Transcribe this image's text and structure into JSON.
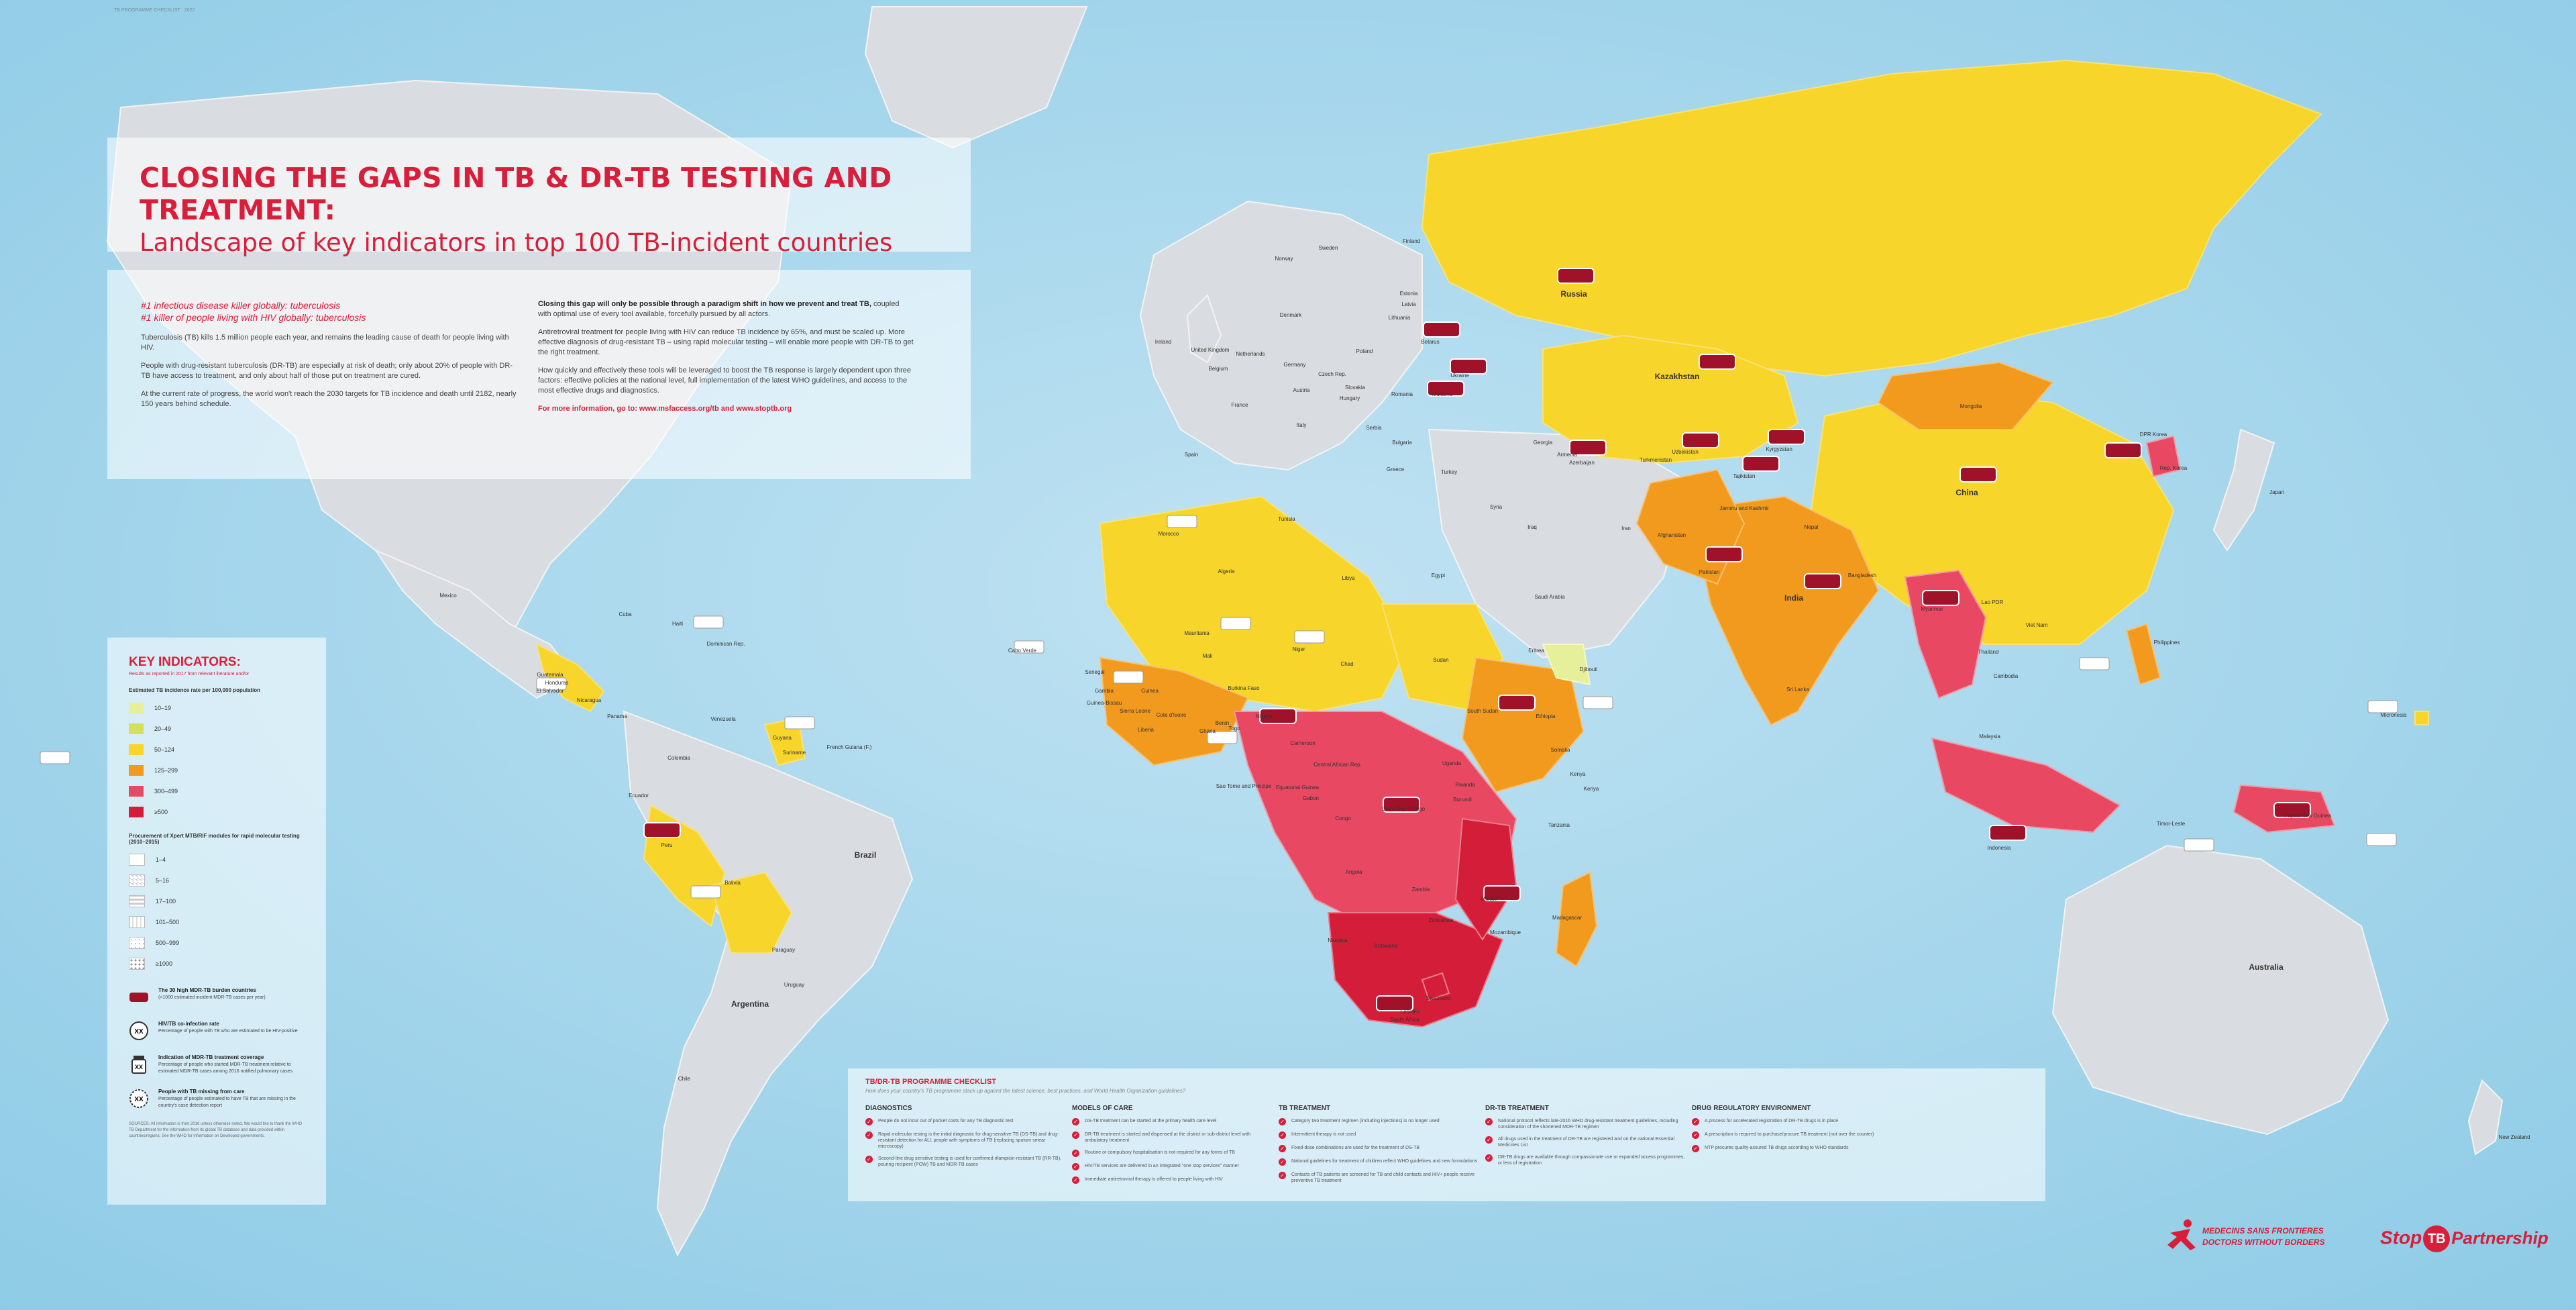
{
  "corner_note": "TB PROGRAMME CHECKLIST  ·  2022",
  "title": {
    "line1": "CLOSING THE GAPS IN TB & DR-TB TESTING AND TREATMENT:",
    "line2": "Landscape of key indicators in top 100 TB-incident countries"
  },
  "intro": {
    "kill1": "#1 infectious disease killer globally: tuberculosis",
    "kill2": "#1 killer of people living with HIV globally: tuberculosis",
    "p1": "Tuberculosis (TB) kills 1.5 million people each year, and remains the leading cause of death for people living with HIV.",
    "p2": "People with drug-resistant tuberculosis (DR-TB) are especially at risk of death; only about 20% of people with DR-TB have access to treatment, and only about half of those put on treatment are cured.",
    "p3": "At the current rate of progress, the world won't reach the 2030 targets for TB incidence and death until 2182, nearly 150 years behind schedule.",
    "right_strong": "Closing this gap will only be possible through a paradigm shift in how we prevent and treat TB,",
    "right_rest": " coupled with optimal use of every tool available, forcefully pursued by all actors.",
    "p4": "Antiretroviral treatment for people living with HIV can reduce TB incidence by 65%, and must be scaled up. More effective diagnosis of drug-resistant TB – using rapid molecular testing – will enable more people with DR-TB to get the right treatment.",
    "p5": "How quickly and effectively these tools will be leveraged to boost the TB response is largely dependent upon three factors: effective policies at the national level, full implementation of the latest WHO guidelines, and access to the most effective drugs and diagnostics.",
    "link": "For more information, go to: www.msfaccess.org/tb and www.stoptb.org"
  },
  "legend": {
    "title": "KEY INDICATORS:",
    "subtitle": "Results as reported in 2017 from relevant literature and/or",
    "incidence_head": "Estimated TB incidence rate per 100,000 population",
    "incidence_bins": [
      {
        "label": "10–19",
        "color": "#e6ef9a"
      },
      {
        "label": "20–49",
        "color": "#d3e15a"
      },
      {
        "label": "50–124",
        "color": "#f7d52a"
      },
      {
        "label": "125–299",
        "color": "#f29a1e"
      },
      {
        "label": "300–499",
        "color": "#e84862"
      },
      {
        "label": "≥500",
        "color": "#d41d38"
      }
    ],
    "procurement_head": "Procurement of Xpert MTB/RIF modules for rapid molecular testing (2010–2015)",
    "procurement_bins": [
      "1–4",
      "5–16",
      "17–100",
      "101–500",
      "500–999",
      "≥1000"
    ],
    "dr_title": "The 30 high MDR-TB burden countries",
    "dr_text": "(>1000 estimated incident MDR-TB cases per year)",
    "hiv_title": "HIV/TB co-infection rate",
    "hiv_text": "Percentage of people with TB who are estimated to be HIV-positive",
    "mdr_title": "Indication of MDR-TB treatment coverage",
    "mdr_text": "Percentage of people who started MDR-TB treatment relative to estimated MDR-TB cases among 2016 notified pulmonary cases",
    "missing_title": "People with TB missing from care",
    "missing_text": "Percentage of people estimated to have TB that are missing in the country's case detection report",
    "footnote": "SOURCES: All information is from 2016 unless otherwise noted. We would like to thank the WHO TB Department for the information from its global TB database and data provided within countries/regions. See the WHO for information on Developed governments."
  },
  "checklist": {
    "title": "TB/DR-TB PROGRAMME CHECKLIST",
    "subtitle": "How does your country's TB programme stack up against the latest science, best practices, and World Health Organization guidelines?",
    "columns": [
      {
        "head": "DIAGNOSTICS",
        "items": [
          "People do not incur out of pocket costs for any TB diagnostic test",
          "Rapid molecular testing is the initial diagnostic for drug-sensitive TB (DS-TB) and drug-resistant detection for ALL people with symptoms of TB (replacing sputum smear microscopy)",
          "Second-line drug sensitive testing is used for confirmed rifampicin-resistant TB (RR-TB), pouring recipient (POW) TB and MDR-TB cases"
        ]
      },
      {
        "head": "MODELS OF CARE",
        "items": [
          "DS-TB treatment can be started at the primary health care level",
          "DR-TB treatment is started and dispensed at the district or sub-district level with ambulatory treatment",
          "Routine or compulsory hospitalisation is not required for any forms of TB",
          "HIV/TB services are delivered in an integrated \"one stop services\" manner",
          "Immediate antiretroviral therapy is offered to people living with HIV"
        ]
      },
      {
        "head": "TB TREATMENT",
        "items": [
          "Category two treatment regimen (including injections) is no longer used",
          "Intermittent therapy is not used",
          "Fixed-dose combinations are used for the treatment of DS-TB",
          "National guidelines for treatment of children reflect WHO guidelines and new formulations",
          "Contacts of TB patients are screened for TB and child contacts and HIV+ people receive preventive TB treatment"
        ]
      },
      {
        "head": "DR-TB TREATMENT",
        "items": [
          "National protocol reflects late-2016 WHO drug-resistant treatment guidelines, including consideration of the shortened MDR-TB regimen",
          "All drugs used in the treatment of DR-TB are registered and on the national Essential Medicines List",
          "DR-TB drugs are available through compassionate use or expanded access programmes, or less of registration"
        ]
      },
      {
        "head": "DRUG REGULATORY ENVIRONMENT",
        "items": [
          "A process for accelerated registration of DR-TB drugs is in place",
          "A prescription is required to purchase/procure TB treatment (not over the counter)",
          "NTP procures quality-assured TB drugs according to WHO standards"
        ]
      }
    ]
  },
  "logos": {
    "msf_line1": "MEDECINS SANS FRONTIERES",
    "msf_line2": "DOCTORS WITHOUT BORDERS",
    "stop_a": "Stop",
    "stop_b": "TB",
    "stop_c": "Partnership"
  },
  "map_labels": [
    "Russia",
    "Kazakhstan",
    "Mongolia",
    "China",
    "India",
    "Pakistan",
    "Afghanistan",
    "Uzbekistan",
    "Turkmenistan",
    "Kyrgyzstan",
    "Tajikistan",
    "Myanmar",
    "Indonesia",
    "Japan",
    "Australia",
    "New Zealand",
    "Micronesia",
    "Malaysia",
    "Finland",
    "Sweden",
    "Norway",
    "Estonia",
    "Latvia",
    "Lithuania",
    "Belarus",
    "Ukraine",
    "Moldova",
    "Romania",
    "Bulgaria",
    "Turkey",
    "Georgia",
    "Azerbaijan",
    "Armenia",
    "Iran",
    "Iraq",
    "Syria",
    "Saudi Arabia",
    "Egypt",
    "Libya",
    "Algeria",
    "Morocco",
    "Tunisia",
    "Mauritania",
    "Mali",
    "Niger",
    "Chad",
    "Sudan",
    "Ethiopia",
    "Somalia",
    "Kenya",
    "Uganda",
    "Nigeria",
    "Ghana",
    "Cote d'Ivoire",
    "Dem. Rep. Congo",
    "Angola",
    "Zambia",
    "Zimbabwe",
    "Mozambique",
    "Madagascar",
    "Namibia",
    "Botswana",
    "South Africa",
    "Mexico",
    "Cuba",
    "Haiti",
    "Dominican Rep.",
    "Guatemala",
    "Honduras",
    "El Salvador",
    "Nicaragua",
    "Panama",
    "Venezuela",
    "Colombia",
    "Ecuador",
    "Peru",
    "Bolivia",
    "Brazil",
    "Paraguay",
    "Uruguay",
    "Argentina",
    "Chile",
    "Guyana",
    "Suriname",
    "French Guiana (F.)",
    "Spain",
    "France",
    "Germany",
    "Poland",
    "Italy",
    "Ireland",
    "United Kingdom",
    "Denmark",
    "Netherlands",
    "Belgium",
    "Czech Rep.",
    "Slovakia",
    "Hungary",
    "Serbia",
    "Austria",
    "Greece",
    "Kenya",
    "Tanzania",
    "Malawi",
    "Swaziland",
    "Lesotho",
    "Congo",
    "Cameroon",
    "Burkina Faso",
    "Guinea",
    "Sierra Leone",
    "Liberia",
    "Senegal",
    "Gambia",
    "Guinea-Bissau",
    "Benin",
    "Togo",
    "Papua New Guinea",
    "Philippines",
    "Thailand",
    "Viet Nam",
    "Cambodia",
    "Lao PDR",
    "Bangladesh",
    "Nepal",
    "Sri Lanka",
    "Timor-Leste",
    "Rep. Korea",
    "DPR Korea",
    "Jammu and Kashmir",
    "Sao Tome and Principe",
    "Cabo Verde",
    "Djibouti",
    "Eritrea",
    "South Sudan",
    "Central African Rep.",
    "Equatorial Guinea",
    "Gabon",
    "Rwanda",
    "Burundi"
  ]
}
